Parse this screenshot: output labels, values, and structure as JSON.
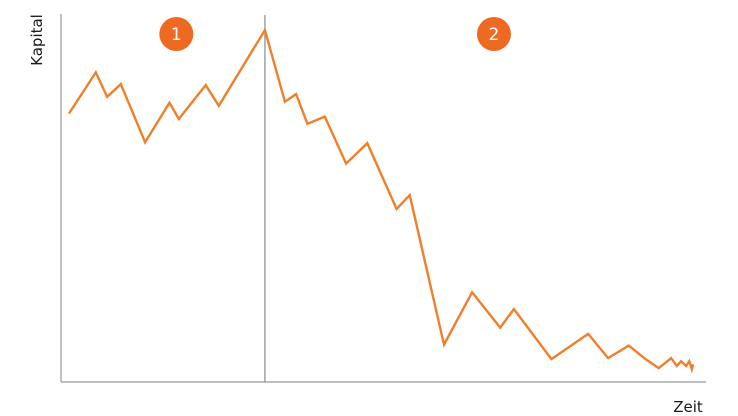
{
  "chart_data": {
    "type": "line",
    "xlabel": "Zeit",
    "ylabel": "Kapital",
    "grid": false,
    "xlim": [
      0,
      100
    ],
    "ylim": [
      0,
      100
    ],
    "divider_x": 31.4,
    "phases": [
      {
        "label": "1",
        "x": 17.2
      },
      {
        "label": "2",
        "x": 68.1
      }
    ],
    "colors": {
      "line": "#F07F2C",
      "badge": "#EE6A22",
      "axis": "#9a9a9a",
      "divider": "#8a8a8a"
    },
    "series": [
      {
        "x": [
          0,
          4.3,
          6.1,
          8.3,
          12.2,
          16.1,
          17.6,
          21.9,
          24.0,
          31.4,
          34.6,
          36.4,
          38.2,
          41.0,
          44.4,
          47.8,
          52.5,
          54.6,
          60.1,
          64.6,
          69.1,
          71.3,
          77.3,
          83.2,
          86.4,
          89.7,
          92.4,
          94.5,
          96.5,
          97.4,
          98.1,
          98.9,
          99.4,
          99.8,
          100
        ],
        "y": [
          75.3,
          87.2,
          80.1,
          83.8,
          67.0,
          78.4,
          73.7,
          83.5,
          77.5,
          99.4,
          78.7,
          80.9,
          72.3,
          74.4,
          60.8,
          66.7,
          47.7,
          51.7,
          8.5,
          23.6,
          13.4,
          18.8,
          4.3,
          11.6,
          4.6,
          8.2,
          4.3,
          1.7,
          4.6,
          2.3,
          3.7,
          2.3,
          3.7,
          1.4,
          2.8
        ]
      }
    ]
  }
}
